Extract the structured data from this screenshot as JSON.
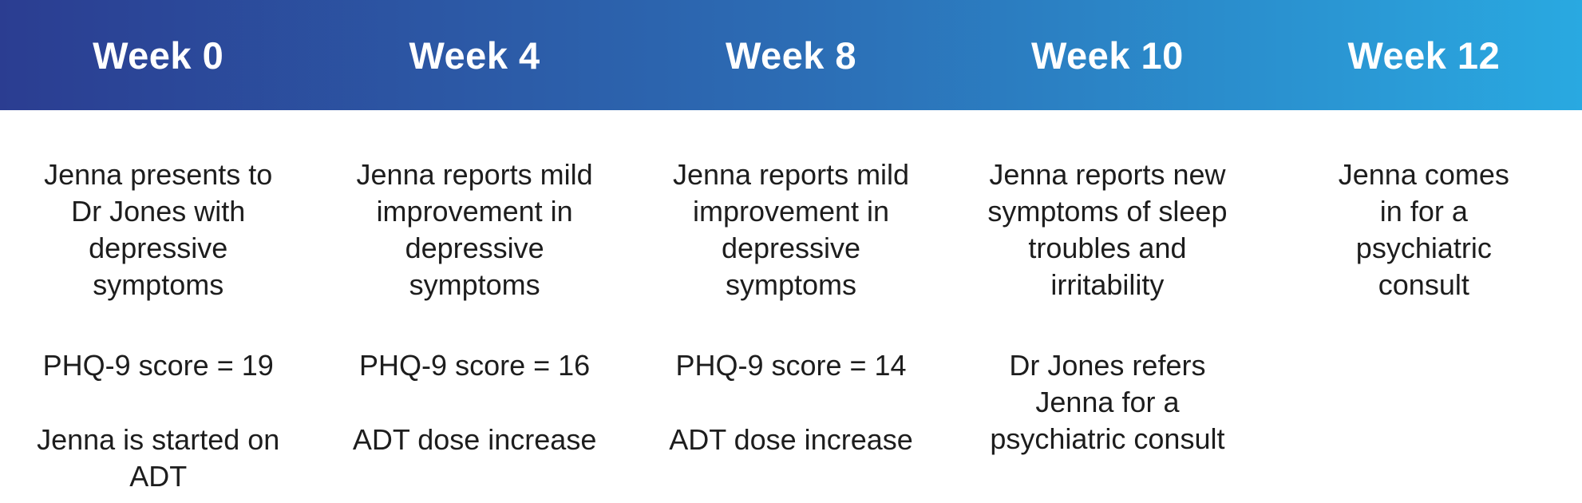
{
  "colors": {
    "gradient_start": "#2b3d91",
    "gradient_end": "#29a9e1",
    "header_text": "#ffffff",
    "body_text": "#1d1d1d",
    "background": "#ffffff"
  },
  "timeline": {
    "columns": [
      {
        "week": "Week 0",
        "events": [
          "Jenna presents to\nDr Jones with\ndepressive\nsymptoms",
          "PHQ-9 score = 19",
          "Jenna is started on\nADT"
        ]
      },
      {
        "week": "Week 4",
        "events": [
          "Jenna reports mild\nimprovement in\ndepressive\nsymptoms",
          "PHQ-9 score = 16",
          "ADT dose increase"
        ]
      },
      {
        "week": "Week 8",
        "events": [
          "Jenna reports mild\nimprovement in\ndepressive\nsymptoms",
          "PHQ-9 score = 14",
          "ADT dose increase"
        ]
      },
      {
        "week": "Week 10",
        "events": [
          "Jenna reports new\nsymptoms of sleep\ntroubles and\nirritability",
          "Dr Jones refers\nJenna for a\npsychiatric consult",
          ""
        ]
      },
      {
        "week": "Week 12",
        "events": [
          "Jenna comes\nin for a\npsychiatric\nconsult",
          "",
          ""
        ]
      }
    ]
  }
}
